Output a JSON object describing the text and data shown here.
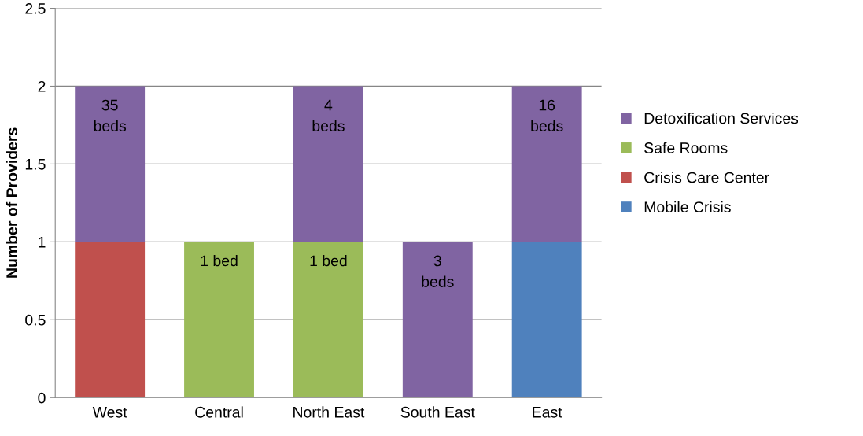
{
  "chart_data": {
    "type": "bar",
    "stacked": true,
    "ylabel": "Number of Providers",
    "categories": [
      "West",
      "Central",
      "North East",
      "South East",
      "East"
    ],
    "series": [
      {
        "name": "Mobile Crisis",
        "color": "#4f81bd",
        "values": [
          null,
          null,
          null,
          null,
          1
        ]
      },
      {
        "name": "Crisis Care Center",
        "color": "#c0504d",
        "values": [
          1,
          null,
          null,
          null,
          null
        ]
      },
      {
        "name": "Safe Rooms",
        "color": "#9bbb59",
        "values": [
          null,
          1,
          1,
          null,
          null
        ]
      },
      {
        "name": "Detoxification Services",
        "color": "#8064a2",
        "values": [
          1,
          null,
          1,
          1,
          1
        ]
      }
    ],
    "annotations": [
      {
        "text": "35\nbeds",
        "x": "West",
        "y": 2
      },
      {
        "text": "1 bed",
        "x": "Central",
        "y": 1
      },
      {
        "text": "4\nbeds",
        "x": "North East",
        "y": 2
      },
      {
        "text": "1 bed",
        "x": "North East",
        "y": 1
      },
      {
        "text": "3\nbeds",
        "x": "South East",
        "y": 1
      },
      {
        "text": "16\nbeds",
        "x": "East",
        "y": 2
      }
    ],
    "ylim": [
      0,
      2.5
    ],
    "yticks": [
      0,
      0.5,
      1,
      1.5,
      2,
      2.5
    ],
    "grid": "y",
    "legend": "right"
  }
}
